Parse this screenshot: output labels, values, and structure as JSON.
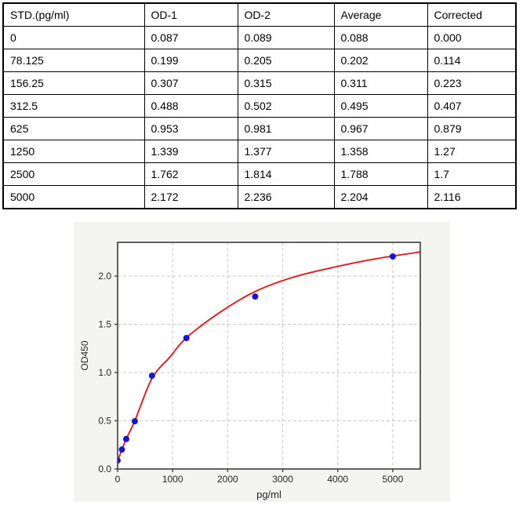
{
  "table": {
    "columns": [
      "STD.(pg/ml)",
      "OD-1",
      "OD-2",
      "Average",
      "Corrected"
    ],
    "rows": [
      [
        "0",
        "0.087",
        "0.089",
        "0.088",
        "0.000"
      ],
      [
        "78.125",
        "0.199",
        "0.205",
        "0.202",
        "0.114"
      ],
      [
        "156.25",
        "0.307",
        "0.315",
        "0.311",
        "0.223"
      ],
      [
        "312.5",
        "0.488",
        "0.502",
        "0.495",
        "0.407"
      ],
      [
        "625",
        "0.953",
        "0.981",
        "0.967",
        "0.879"
      ],
      [
        "1250",
        "1.339",
        "1.377",
        "1.358",
        "1.27"
      ],
      [
        "2500",
        "1.762",
        "1.814",
        "1.788",
        "1.7"
      ],
      [
        "5000",
        "2.172",
        "2.236",
        "2.204",
        "2.116"
      ]
    ]
  },
  "chart_data": {
    "type": "scatter",
    "title": "",
    "xlabel": "pg/ml",
    "ylabel": "OD450",
    "xlim": [
      0,
      5500
    ],
    "ylim": [
      0,
      2.35
    ],
    "x_ticks": [
      0,
      1000,
      2000,
      3000,
      4000,
      5000
    ],
    "x_tick_labels": [
      "0",
      "1000",
      "2000",
      "3000",
      "4000",
      "5000"
    ],
    "y_ticks": [
      0,
      0.5,
      1,
      1.5,
      2
    ],
    "y_tick_labels": [
      "0.0",
      "0.5",
      "1.0",
      "1.5",
      "2.0"
    ],
    "grid": {
      "visible": true,
      "style": "dashed"
    },
    "legend": {
      "visible": false
    },
    "series": [
      {
        "name": "standard-points",
        "type": "scatter",
        "x": [
          0,
          78.125,
          156.25,
          312.5,
          625,
          1250,
          2500,
          5000
        ],
        "y": [
          0.088,
          0.202,
          0.311,
          0.495,
          0.967,
          1.358,
          1.788,
          2.204
        ],
        "color": "#1616cd",
        "marker_radius": 4
      },
      {
        "name": "fit-curve",
        "type": "line",
        "x": [
          0,
          78,
          156,
          313,
          625,
          950,
          1250,
          1875,
          2500,
          3200,
          4000,
          4700,
          5500
        ],
        "y": [
          0.08,
          0.2,
          0.31,
          0.5,
          0.94,
          1.16,
          1.36,
          1.63,
          1.84,
          1.99,
          2.1,
          2.18,
          2.25
        ],
        "color": "#dd2727",
        "line_width": 2
      }
    ],
    "colors": {
      "panel_bg": "#f4f4f1",
      "plot_bg": "#ffffff",
      "grid": "#c9c9c9",
      "spine": "#474747",
      "tick_text": "#262626"
    }
  }
}
